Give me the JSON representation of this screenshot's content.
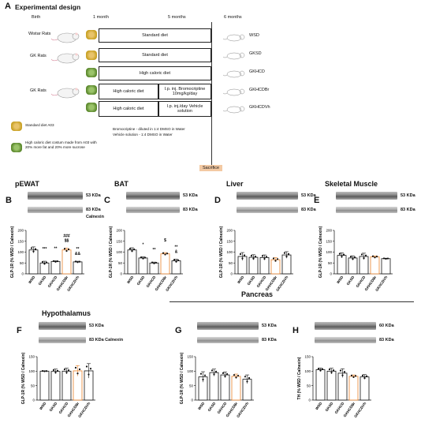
{
  "panelA": {
    "letter": "A",
    "title": "Experimental design",
    "timeline": [
      "Birth",
      "1 month",
      "5 months",
      "6 months"
    ],
    "rows": [
      {
        "rat": "Wistar Rats",
        "diet": "Standard diet",
        "extra": "",
        "group": "WSD",
        "food": "standard"
      },
      {
        "rat": "GK Rats",
        "diet": "Standard diet",
        "extra": "",
        "group": "GKSD",
        "food": "standard"
      },
      {
        "rat": "",
        "diet": "High caloric diet",
        "extra": "",
        "group": "GKHCD",
        "food": "hc"
      },
      {
        "rat": "GK Rats",
        "diet": "High caloric diet",
        "extra": "I.p. inj. Bromocriptine 10mg/kg/day",
        "group": "GKHCDBr",
        "food": "hc"
      },
      {
        "rat": "",
        "diet": "High caloric diet",
        "extra": "I.p. inj./day Vehicle solution",
        "group": "GKHCDVh",
        "food": "hc"
      }
    ],
    "legend_standard": "Standard diet A03",
    "legend_hc": "High caloric diet costum made from A03 with 20% more fat and 20% more sucrose",
    "note_bromo": "Bromocriptine - diluted in 1:4 DMSO in Water",
    "note_vehicle": "Vehicle solution - 1:4 DMSO in Water",
    "sacrifice": "Sacrifice"
  },
  "groups": [
    "WSD",
    "GKSD",
    "GKHCD",
    "GKHCDBr",
    "GKHCDVh"
  ],
  "tissue_titles": {
    "pEWAT": "pEWAT",
    "BAT": "BAT",
    "Liver": "Liver",
    "Muscle": "Skeletal Muscle",
    "Hypo": "Hypothalamus",
    "Pancreas": "Pancreas"
  },
  "colors": {
    "highlight": "#e8822a",
    "bar": "#ffffff",
    "stroke": "#111111"
  },
  "chart_data": [
    {
      "id": "B",
      "title": "pEWAT",
      "type": "bar",
      "categories": [
        "WSD",
        "GKSD",
        "GKHCD",
        "GKHCDBr",
        "GKHCDVh"
      ],
      "values": [
        110,
        50,
        57,
        110,
        55
      ],
      "errors": [
        14,
        8,
        3,
        9,
        3
      ],
      "ylabel": "GLP-1R (% WSD / Calnexin)",
      "ylim": [
        0,
        200
      ],
      "yticks": [
        0,
        50,
        100,
        150,
        200
      ],
      "kda_top": "53 KDa",
      "kda_bot": "83 KDa",
      "kda_bot2": "Calnexin",
      "sig": [
        "",
        "***",
        "**",
        "###",
        "**"
      ],
      "sig2": [
        "",
        "",
        "",
        "$$",
        "&&"
      ],
      "highlight": 3
    },
    {
      "id": "C",
      "title": "BAT",
      "type": "bar",
      "categories": [
        "WSD",
        "GKSD",
        "GKHCD",
        "GKHCDBr",
        "GKHCDVh"
      ],
      "values": [
        110,
        73,
        50,
        92,
        60
      ],
      "errors": [
        10,
        5,
        4,
        6,
        8
      ],
      "ylabel": "GLP-1R (% WSD / Calnexin)",
      "ylim": [
        0,
        200
      ],
      "yticks": [
        0,
        50,
        100,
        150,
        200
      ],
      "kda_top": "53 KDa",
      "kda_bot": "83 KDa",
      "sig": [
        "",
        "*",
        "**",
        "$",
        "**"
      ],
      "sig2": [
        "",
        "",
        "",
        "",
        "&"
      ],
      "highlight": 3
    },
    {
      "id": "D",
      "title": "Liver",
      "type": "bar",
      "categories": [
        "WSD",
        "GKSD",
        "GKHCD",
        "GKHCDBr",
        "GKHCDVh"
      ],
      "values": [
        80,
        76,
        75,
        65,
        87
      ],
      "errors": [
        18,
        12,
        12,
        10,
        15
      ],
      "ylabel": "GLP-1R (% WSD / Calnexin)",
      "ylim": [
        0,
        200
      ],
      "yticks": [
        0,
        50,
        100,
        150,
        200
      ],
      "kda_top": "53 KDa",
      "kda_bot": "83 KDa",
      "highlight": 3
    },
    {
      "id": "E",
      "title": "Skeletal Muscle",
      "type": "bar",
      "categories": [
        "WSD",
        "GKSD",
        "GKHCD",
        "GKHCDBr",
        "GKHCDVh"
      ],
      "values": [
        85,
        73,
        80,
        78,
        70
      ],
      "errors": [
        12,
        10,
        15,
        5,
        2
      ],
      "ylabel": "GLP-1R (% WSD / Calnexin)",
      "ylim": [
        0,
        200
      ],
      "yticks": [
        0,
        50,
        100,
        150,
        200
      ],
      "kda_top": "53 KDa",
      "kda_bot": "83 KDa",
      "highlight": 3
    },
    {
      "id": "F",
      "title": "Hypothalamus",
      "type": "bar",
      "categories": [
        "WSD",
        "GKSD",
        "GKHCD",
        "GKHCDBr",
        "GKHCDVh"
      ],
      "values": [
        100,
        99,
        100,
        101,
        101
      ],
      "errors": [
        1,
        8,
        10,
        18,
        25
      ],
      "ylabel": "GLP-1R (% WSD / Calnexin)",
      "ylim": [
        0,
        150
      ],
      "yticks": [
        0,
        50,
        100,
        150
      ],
      "kda_top": "53 KDa",
      "kda_bot": "83 KDa Calnexin",
      "highlight": 3
    },
    {
      "id": "G",
      "title": "Pancreas",
      "type": "bar",
      "categories": [
        "WSD",
        "GKSD",
        "GKHCD",
        "GKHCDBr",
        "GKHCDVh"
      ],
      "values": [
        80,
        95,
        87,
        82,
        72
      ],
      "errors": [
        18,
        12,
        10,
        8,
        15
      ],
      "ylabel": "GLP-1R (% WSD / Calnexin)",
      "ylim": [
        0,
        150
      ],
      "yticks": [
        0,
        50,
        100,
        150
      ],
      "kda_top": "53 KDa",
      "kda_bot": "83 KDa",
      "highlight": 3
    },
    {
      "id": "H",
      "title": "",
      "type": "bar",
      "categories": [
        "WSD",
        "GKSD",
        "GKHCD",
        "GKHCDBr",
        "GKHCDVh"
      ],
      "values": [
        105,
        100,
        93,
        82,
        80
      ],
      "errors": [
        6,
        10,
        15,
        5,
        8
      ],
      "ylabel": "TH (% WSD / Calnexin)",
      "ylim": [
        0,
        150
      ],
      "yticks": [
        0,
        50,
        100,
        150
      ],
      "kda_top": "60 KDa",
      "kda_bot": "83 KDa",
      "highlight": 3
    }
  ]
}
